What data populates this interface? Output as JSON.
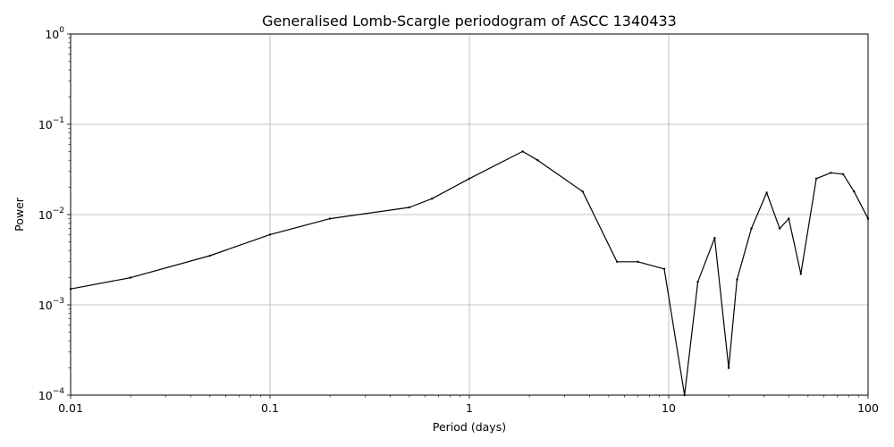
{
  "chart_data": {
    "type": "line",
    "title": "Generalised Lomb-Scargle periodogram of ASCC 1340433",
    "xlabel": "Period (days)",
    "ylabel": "Power",
    "xscale": "log",
    "yscale": "log",
    "xlim": [
      0.01,
      100
    ],
    "ylim": [
      0.0001,
      1
    ],
    "grid": true,
    "line_color": "#000000",
    "grid_color": "#b0b0b0",
    "x_ticks": [
      {
        "value": 0.01,
        "label": "0.01"
      },
      {
        "value": 0.1,
        "label": "0.1"
      },
      {
        "value": 1,
        "label": "1"
      },
      {
        "value": 10,
        "label": "10"
      },
      {
        "value": 100,
        "label": "100"
      }
    ],
    "y_ticks": [
      {
        "value": 0.0001,
        "base": "10",
        "exp": "−4"
      },
      {
        "value": 0.001,
        "base": "10",
        "exp": "−3"
      },
      {
        "value": 0.01,
        "base": "10",
        "exp": "−2"
      },
      {
        "value": 0.1,
        "base": "10",
        "exp": "−1"
      },
      {
        "value": 1,
        "base": "10",
        "exp": "0"
      }
    ],
    "series": [
      {
        "x": [
          0.01,
          0.02,
          0.05,
          0.1,
          0.2,
          0.5,
          0.65,
          1.0,
          1.85,
          2.2,
          3.7,
          5.5,
          7,
          9.5,
          12,
          14,
          17,
          20,
          22,
          26,
          31,
          36,
          40,
          46,
          55,
          65,
          75,
          85,
          100
        ],
        "y": [
          0.0015,
          0.002,
          0.0035,
          0.006,
          0.009,
          0.012,
          0.015,
          0.025,
          0.05,
          0.04,
          0.018,
          0.003,
          0.003,
          0.0025,
          0.0001,
          0.0018,
          0.0055,
          0.0002,
          0.0019,
          0.007,
          0.0175,
          0.007,
          0.009,
          0.0022,
          0.025,
          0.029,
          0.028,
          0.018,
          0.009
        ]
      }
    ]
  }
}
